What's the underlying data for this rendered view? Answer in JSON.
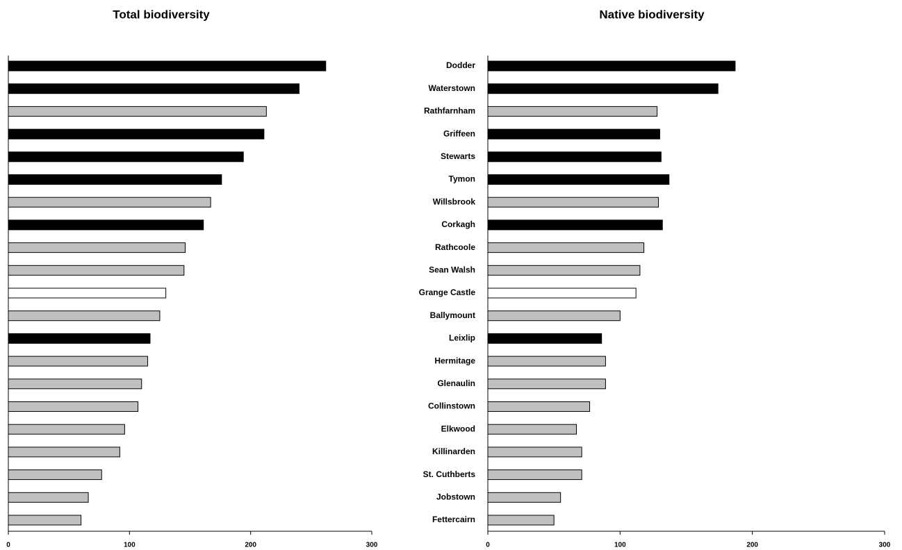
{
  "chart_data": [
    {
      "type": "bar",
      "orientation": "horizontal",
      "title": "Total biodiversity",
      "values": [
        262,
        240,
        213,
        211,
        194,
        176,
        167,
        161,
        146,
        145,
        130,
        125,
        117,
        115,
        110,
        107,
        96,
        92,
        77,
        66,
        60
      ],
      "colors": [
        "#000000",
        "#000000",
        "#c0c0c0",
        "#000000",
        "#000000",
        "#000000",
        "#c0c0c0",
        "#000000",
        "#c0c0c0",
        "#c0c0c0",
        "#ffffff",
        "#c0c0c0",
        "#000000",
        "#c0c0c0",
        "#c0c0c0",
        "#c0c0c0",
        "#c0c0c0",
        "#c0c0c0",
        "#c0c0c0",
        "#c0c0c0",
        "#c0c0c0"
      ],
      "xlim": [
        0,
        300
      ],
      "xticks": [
        0,
        100,
        200,
        300
      ]
    },
    {
      "type": "bar",
      "orientation": "horizontal",
      "title": "Native biodiversity",
      "categories": [
        "Dodder",
        "Waterstown",
        "Rathfarnham",
        "Griffeen",
        "Stewarts",
        "Tymon",
        "Willsbrook",
        "Corkagh",
        "Rathcoole",
        "Sean Walsh",
        "Grange Castle",
        "Ballymount",
        "Leixlip",
        "Hermitage",
        "Glenaulin",
        "Collinstown",
        "Elkwood",
        "Killinarden",
        "St. Cuthberts",
        "Jobstown",
        "Fettercairn"
      ],
      "values": [
        187,
        174,
        128,
        130,
        131,
        137,
        129,
        132,
        118,
        115,
        112,
        100,
        86,
        89,
        89,
        77,
        67,
        71,
        71,
        55,
        50
      ],
      "colors": [
        "#000000",
        "#000000",
        "#c0c0c0",
        "#000000",
        "#000000",
        "#000000",
        "#c0c0c0",
        "#000000",
        "#c0c0c0",
        "#c0c0c0",
        "#ffffff",
        "#c0c0c0",
        "#000000",
        "#c0c0c0",
        "#c0c0c0",
        "#c0c0c0",
        "#c0c0c0",
        "#c0c0c0",
        "#c0c0c0",
        "#c0c0c0",
        "#c0c0c0"
      ],
      "xlim": [
        0,
        300
      ],
      "xticks": [
        0,
        100,
        200,
        300
      ]
    }
  ]
}
